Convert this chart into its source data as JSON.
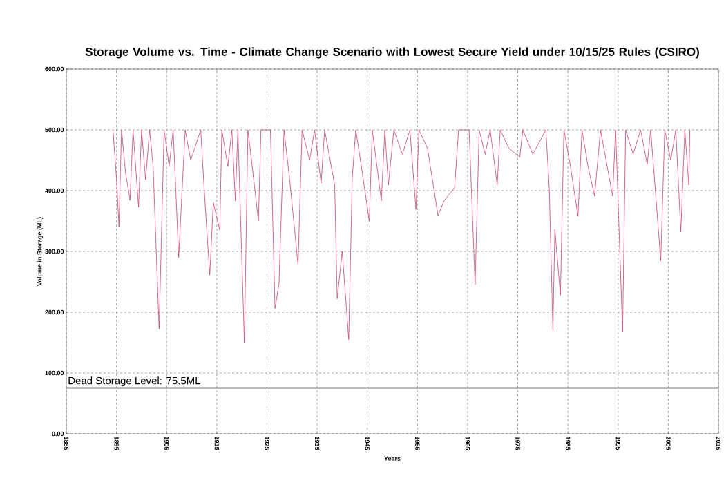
{
  "chart_data": {
    "type": "line",
    "title": "Storage Volume vs. Time - Climate Change Scenario with Lowest Secure Yield under 10/15/25 Rules (CSIRO)",
    "xlabel": "Years",
    "ylabel": "Volume in Storage (ML)",
    "xlim": [
      1885,
      2015
    ],
    "xticks": [
      1885,
      1895,
      1905,
      1915,
      1925,
      1935,
      1945,
      1955,
      1965,
      1975,
      1985,
      1995,
      2005,
      2015
    ],
    "ylim": [
      0,
      600
    ],
    "yticks": [
      {
        "value": 0,
        "label": "0.00"
      },
      {
        "value": 100,
        "label": "100.00"
      },
      {
        "value": 200,
        "label": "200.00"
      },
      {
        "value": 300,
        "label": "300.00"
      },
      {
        "value": 400,
        "label": "400.00"
      },
      {
        "value": 500,
        "label": "500.00"
      },
      {
        "value": 600,
        "label": "600.00"
      }
    ],
    "grid": true,
    "marker": "none",
    "line_style": "solid",
    "ref_lines": [
      {
        "axis": "y",
        "value": 75.5,
        "label": "Dead Storage Level: 75.5ML",
        "color": "#000000",
        "line_style": "solid"
      }
    ],
    "series": [
      {
        "color": "#c8446a",
        "x": [
          1894.3,
          1895.0,
          1895.5,
          1896.0,
          1896.8,
          1897.7,
          1898.3,
          1899.4,
          1900.0,
          1900.8,
          1901.6,
          1902.3,
          1903.5,
          1904.5,
          1905.5,
          1906.3,
          1907.4,
          1908.7,
          1909.8,
          1911.8,
          1912.5,
          1913.6,
          1914.3,
          1915.6,
          1916.0,
          1917.2,
          1918.0,
          1918.7,
          1919.2,
          1920.5,
          1921.2,
          1922.2,
          1923.3,
          1923.8,
          1925.7,
          1926.6,
          1927.4,
          1928.4,
          1929.5,
          1931.2,
          1932.0,
          1933.5,
          1934.5,
          1935.8,
          1936.5,
          1938.5,
          1939.0,
          1940.0,
          1941.3,
          1942.0,
          1942.7,
          1944.0,
          1945.4,
          1946.0,
          1947.8,
          1948.5,
          1949.2,
          1950.3,
          1952.0,
          1953.5,
          1954.7,
          1955.3,
          1957.0,
          1959.1,
          1960.3,
          1962.4,
          1963.2,
          1965.3,
          1966.5,
          1967.3,
          1968.5,
          1969.5,
          1970.9,
          1971.5,
          1973.2,
          1975.4,
          1976.0,
          1978.0,
          1980.6,
          1981.3,
          1982.0,
          1982.4,
          1983.5,
          1984.2,
          1985.5,
          1987.0,
          1987.8,
          1989.0,
          1990.3,
          1991.5,
          1993.9,
          1994.5,
          1995.9,
          1996.5,
          1998.0,
          1999.5,
          2000.8,
          2001.5,
          2003.5,
          2004.3,
          2005.5,
          2006.5,
          2007.5,
          2008.3,
          2009.1,
          2009.3
        ],
        "values": [
          500,
          420,
          341,
          500,
          430,
          384,
          500,
          373,
          500,
          418,
          500,
          440,
          172,
          500,
          440,
          500,
          290,
          500,
          450,
          500,
          400,
          261,
          380,
          335,
          500,
          440,
          500,
          383,
          500,
          150,
          500,
          430,
          350,
          500,
          500,
          206,
          247,
          500,
          420,
          278,
          500,
          450,
          500,
          412,
          500,
          409,
          222,
          300,
          155,
          420,
          500,
          430,
          349,
          500,
          383,
          500,
          409,
          500,
          460,
          500,
          369,
          500,
          470,
          359,
          383,
          405,
          500,
          500,
          245,
          500,
          460,
          500,
          409,
          500,
          470,
          455,
          500,
          460,
          500,
          400,
          170,
          336,
          228,
          500,
          440,
          358,
          500,
          440,
          391,
          500,
          391,
          500,
          168,
          500,
          460,
          500,
          443,
          500,
          285,
          500,
          450,
          500,
          332,
          500,
          409,
          500
        ]
      }
    ]
  }
}
